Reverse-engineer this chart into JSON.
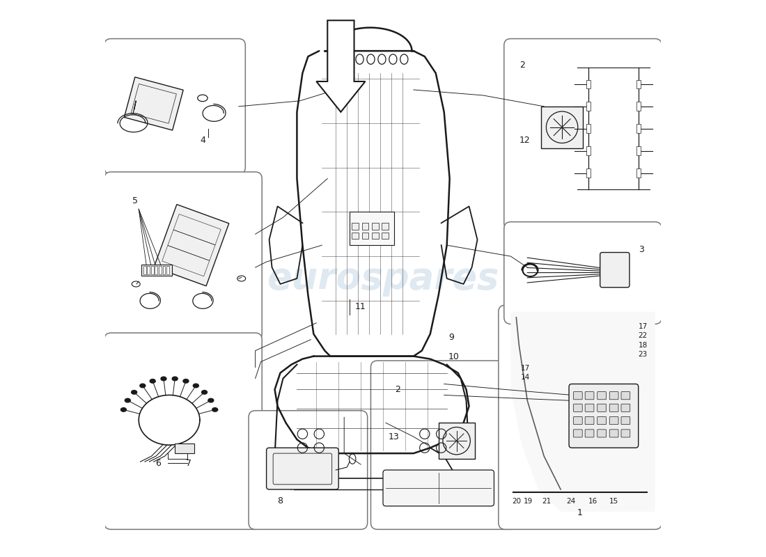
{
  "background_color": "#ffffff",
  "watermark_text": "eurospares",
  "watermark_color": "#b0c8dc",
  "line_color": "#1a1a1a",
  "figure_size": [
    11.0,
    8.0
  ],
  "dpi": 100,
  "boxes": {
    "part4": [
      0.01,
      0.7,
      0.24,
      0.92
    ],
    "part5": [
      0.01,
      0.4,
      0.27,
      0.68
    ],
    "part67": [
      0.01,
      0.06,
      0.27,
      0.39
    ],
    "part8": [
      0.27,
      0.06,
      0.46,
      0.25
    ],
    "part213": [
      0.49,
      0.06,
      0.73,
      0.34
    ],
    "part1": [
      0.72,
      0.06,
      0.99,
      0.44
    ],
    "part212": [
      0.73,
      0.6,
      0.99,
      0.92
    ],
    "part3": [
      0.73,
      0.43,
      0.99,
      0.59
    ]
  },
  "seat_back": {
    "outline_x": [
      0.385,
      0.365,
      0.355,
      0.345,
      0.345,
      0.355,
      0.365,
      0.375,
      0.395,
      0.405,
      0.555,
      0.57,
      0.585,
      0.6,
      0.615,
      0.62,
      0.61,
      0.595,
      0.575,
      0.555,
      0.395
    ],
    "outline_y": [
      0.91,
      0.9,
      0.87,
      0.8,
      0.68,
      0.56,
      0.47,
      0.4,
      0.37,
      0.36,
      0.36,
      0.37,
      0.4,
      0.47,
      0.56,
      0.68,
      0.8,
      0.87,
      0.9,
      0.91,
      0.91
    ]
  },
  "seat_cushion": {
    "outline_x": [
      0.375,
      0.355,
      0.335,
      0.315,
      0.305,
      0.31,
      0.325,
      0.345,
      0.365,
      0.405,
      0.555,
      0.585,
      0.62,
      0.645,
      0.655,
      0.65,
      0.635,
      0.61,
      0.585,
      0.555,
      0.405,
      0.375
    ],
    "outline_y": [
      0.36,
      0.355,
      0.345,
      0.33,
      0.3,
      0.27,
      0.24,
      0.21,
      0.195,
      0.185,
      0.185,
      0.195,
      0.21,
      0.24,
      0.27,
      0.3,
      0.33,
      0.345,
      0.355,
      0.36,
      0.36,
      0.36
    ]
  }
}
